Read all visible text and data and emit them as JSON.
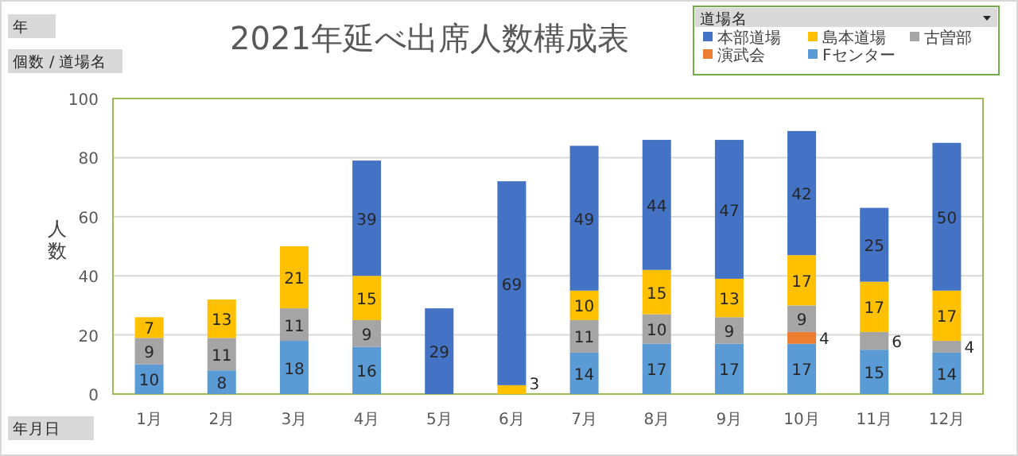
{
  "chart_data": {
    "type": "bar",
    "title": "2021年延べ出席人数構成表",
    "ylabel": "人数",
    "legend_title": "道場名",
    "annotations": [
      "年",
      "個数 / 道場名",
      "年月日"
    ],
    "categories": [
      "1月",
      "2月",
      "3月",
      "4月",
      "5月",
      "6月",
      "7月",
      "8月",
      "9月",
      "10月",
      "11月",
      "12月"
    ],
    "stacked": true,
    "data_labels": true,
    "grid": "y",
    "legend": "top right",
    "ylim": [
      0,
      100
    ],
    "yticks": [
      0,
      20,
      40,
      60,
      80,
      100
    ],
    "series": [
      {
        "name": "Fセンター",
        "color": "#5b9bd5",
        "values": [
          10,
          8,
          18,
          16,
          null,
          null,
          14,
          17,
          17,
          17,
          15,
          14
        ]
      },
      {
        "name": "演武会",
        "color": "#ed7d31",
        "values": [
          null,
          null,
          null,
          null,
          null,
          null,
          null,
          null,
          null,
          4,
          null,
          null
        ]
      },
      {
        "name": "古曽部",
        "color": "#a5a5a5",
        "values": [
          9,
          11,
          11,
          9,
          null,
          null,
          11,
          10,
          9,
          9,
          6,
          4
        ]
      },
      {
        "name": "島本道場",
        "color": "#ffc000",
        "values": [
          7,
          13,
          21,
          15,
          null,
          3,
          10,
          15,
          13,
          17,
          17,
          17
        ]
      },
      {
        "name": "本部道場",
        "color": "#4472c4",
        "values": [
          null,
          null,
          null,
          39,
          29,
          69,
          49,
          44,
          47,
          42,
          25,
          50
        ]
      }
    ]
  }
}
